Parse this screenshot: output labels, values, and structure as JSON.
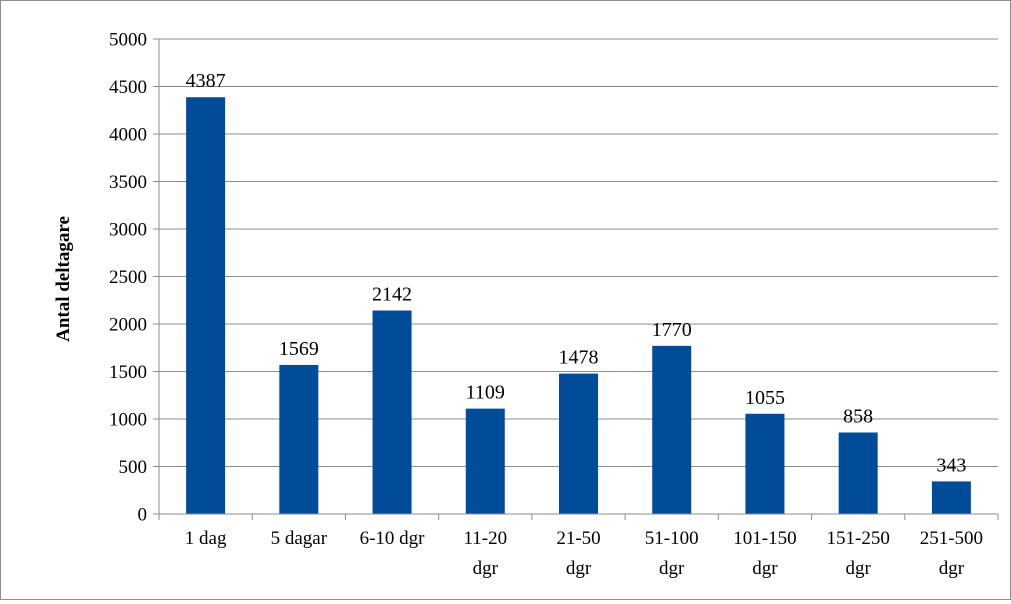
{
  "chart_data": {
    "type": "bar",
    "title": "",
    "xlabel": "",
    "ylabel": "Antal deltagare",
    "categories": [
      [
        "1 dag"
      ],
      [
        "5 dagar"
      ],
      [
        "6-10 dgr"
      ],
      [
        "11-20",
        "dgr"
      ],
      [
        "21-50",
        "dgr"
      ],
      [
        "51-100",
        "dgr"
      ],
      [
        "101-150",
        "dgr"
      ],
      [
        "151-250",
        "dgr"
      ],
      [
        "251-500",
        "dgr"
      ]
    ],
    "values": [
      4387,
      1569,
      2142,
      1109,
      1478,
      1770,
      1055,
      858,
      343
    ],
    "ylim": [
      0,
      5000
    ],
    "yticks": [
      0,
      500,
      1000,
      1500,
      2000,
      2500,
      3000,
      3500,
      4000,
      4500,
      5000
    ],
    "grid": true,
    "legend": "none",
    "colors": {
      "bar": "#004C99",
      "grid": "#8c8c8c",
      "axis": "#8c8c8c"
    }
  }
}
